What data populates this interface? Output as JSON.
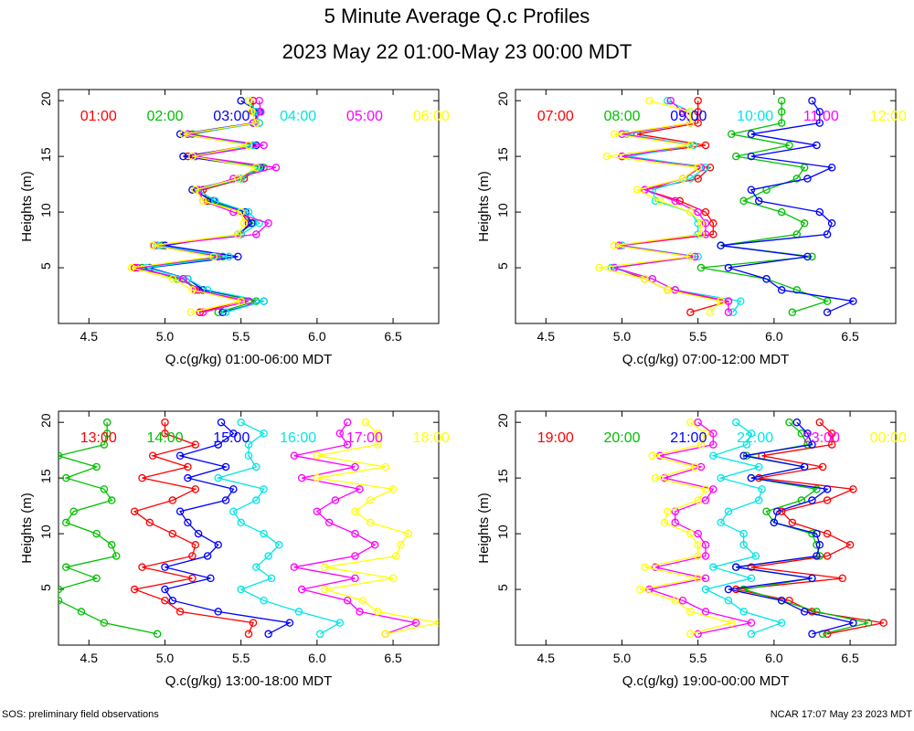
{
  "title": "5 Minute Average Q.c Profiles",
  "subtitle": "2023 May 22 01:00-May 23 00:00 MDT",
  "footer_left": "SOS: preliminary field observations",
  "footer_right": "NCAR 17:07 May 23 2023 MDT",
  "colors": [
    "#ff0000",
    "#00c000",
    "#0000ff",
    "#00e6e6",
    "#ff00ff",
    "#ffff00"
  ],
  "chart_data": [
    {
      "type": "line",
      "xlabel": "Q.c(g/kg) 01:00-06:00 MDT",
      "ylabel": "Heights (m)",
      "xlim": [
        4.3,
        6.8
      ],
      "ylim": [
        0,
        21
      ],
      "xticks": [
        "4.5",
        "5.0",
        "5.5",
        "6.0",
        "6.5"
      ],
      "yticks": [
        "5",
        "10",
        "15",
        "20"
      ],
      "heights": [
        1,
        2,
        3,
        4,
        5,
        6,
        7,
        8,
        9,
        10,
        11,
        12,
        13,
        14,
        15,
        16,
        17,
        18,
        19,
        20
      ],
      "series": [
        {
          "name": "01:00",
          "values": [
            5.23,
            5.5,
            5.22,
            5.12,
            4.8,
            5.35,
            4.95,
            5.5,
            5.55,
            5.5,
            5.28,
            5.25,
            5.52,
            5.62,
            5.15,
            5.55,
            5.15,
            5.62,
            5.58,
            5.58
          ]
        },
        {
          "name": "02:00",
          "values": [
            5.35,
            5.6,
            5.25,
            5.08,
            4.85,
            5.38,
            4.98,
            5.48,
            5.58,
            5.5,
            5.3,
            5.2,
            5.5,
            5.65,
            5.2,
            5.58,
            5.18,
            5.6,
            5.6,
            5.55
          ]
        },
        {
          "name": "03:00",
          "values": [
            5.38,
            5.65,
            5.25,
            5.15,
            4.9,
            5.48,
            5.0,
            5.48,
            5.57,
            5.53,
            5.32,
            5.18,
            5.48,
            5.63,
            5.12,
            5.6,
            5.1,
            5.58,
            5.62,
            5.5
          ]
        },
        {
          "name": "04:00",
          "values": [
            5.4,
            5.65,
            5.28,
            5.15,
            4.88,
            5.42,
            4.95,
            5.5,
            5.62,
            5.55,
            5.33,
            5.22,
            5.5,
            5.62,
            5.18,
            5.58,
            5.15,
            5.62,
            5.6,
            5.55
          ]
        },
        {
          "name": "05:00",
          "values": [
            5.25,
            5.55,
            5.2,
            5.12,
            4.82,
            5.35,
            4.93,
            5.6,
            5.68,
            5.45,
            5.25,
            5.22,
            5.45,
            5.73,
            5.2,
            5.65,
            5.15,
            5.58,
            5.63,
            5.62
          ]
        },
        {
          "name": "06:00",
          "values": [
            5.17,
            5.5,
            5.18,
            5.05,
            4.78,
            5.32,
            4.92,
            5.48,
            5.52,
            5.5,
            5.25,
            5.2,
            5.48,
            5.6,
            5.18,
            5.55,
            5.12,
            5.6,
            5.57,
            5.55
          ]
        }
      ]
    },
    {
      "type": "line",
      "xlabel": "Q.c(g/kg) 07:00-12:00 MDT",
      "ylabel": "Heights (m)",
      "xlim": [
        4.3,
        6.8
      ],
      "ylim": [
        0,
        21
      ],
      "xticks": [
        "4.5",
        "5.0",
        "5.5",
        "6.0",
        "6.5"
      ],
      "yticks": [
        "5",
        "10",
        "15",
        "20"
      ],
      "heights": [
        1,
        2,
        3,
        4,
        5,
        6,
        7,
        8,
        9,
        10,
        11,
        12,
        13,
        14,
        15,
        16,
        17,
        18,
        19,
        20
      ],
      "series": [
        {
          "name": "07:00",
          "values": [
            5.45,
            5.7,
            5.3,
            5.15,
            4.95,
            5.45,
            5.0,
            5.6,
            5.6,
            5.55,
            5.38,
            5.15,
            5.5,
            5.58,
            5.0,
            5.55,
            5.1,
            5.5,
            5.5,
            5.5
          ]
        },
        {
          "name": "08:00",
          "values": [
            6.12,
            6.35,
            6.15,
            5.95,
            5.52,
            6.25,
            5.65,
            6.15,
            6.2,
            6.05,
            5.8,
            5.95,
            6.15,
            6.2,
            5.75,
            6.1,
            5.72,
            6.05,
            6.05,
            6.05
          ]
        },
        {
          "name": "09:00",
          "values": [
            6.35,
            6.52,
            6.05,
            5.95,
            5.7,
            6.22,
            5.65,
            6.35,
            6.38,
            6.3,
            5.9,
            5.85,
            6.22,
            6.38,
            5.85,
            6.28,
            5.85,
            6.3,
            6.3,
            6.25
          ]
        },
        {
          "name": "10:00",
          "values": [
            5.73,
            5.78,
            5.35,
            5.2,
            4.93,
            5.5,
            5.0,
            5.5,
            5.5,
            5.45,
            5.22,
            5.2,
            5.45,
            5.55,
            5.05,
            5.47,
            5.03,
            5.45,
            5.45,
            5.3
          ]
        },
        {
          "name": "11:00",
          "values": [
            5.7,
            5.7,
            5.35,
            5.2,
            4.95,
            5.48,
            4.98,
            5.55,
            5.55,
            5.5,
            5.35,
            5.15,
            5.4,
            5.52,
            5.0,
            5.45,
            5.0,
            5.45,
            5.4,
            5.32
          ]
        },
        {
          "name": "12:00",
          "values": [
            5.58,
            5.65,
            5.3,
            5.15,
            4.85,
            5.45,
            4.95,
            5.52,
            5.52,
            5.45,
            5.25,
            5.1,
            5.4,
            5.5,
            4.9,
            5.45,
            4.95,
            5.45,
            5.45,
            5.18
          ]
        }
      ]
    },
    {
      "type": "line",
      "xlabel": "Q.c(g/kg) 13:00-18:00 MDT",
      "ylabel": "Heights (m)",
      "xlim": [
        4.3,
        6.8
      ],
      "ylim": [
        0,
        21
      ],
      "xticks": [
        "4.5",
        "5.0",
        "5.5",
        "6.0",
        "6.5"
      ],
      "yticks": [
        "5",
        "10",
        "15",
        "20"
      ],
      "heights": [
        1,
        2,
        3,
        4,
        5,
        6,
        7,
        8,
        9,
        10,
        11,
        12,
        13,
        14,
        15,
        16,
        17,
        18,
        19,
        20
      ],
      "series": [
        {
          "name": "13:00",
          "values": [
            5.55,
            5.58,
            5.1,
            5.0,
            4.8,
            5.18,
            4.85,
            5.18,
            5.2,
            5.05,
            4.9,
            4.8,
            5.05,
            5.2,
            4.85,
            5.15,
            4.92,
            5.2,
            5.0,
            5.0
          ]
        },
        {
          "name": "14:00",
          "values": [
            4.95,
            4.6,
            4.45,
            4.3,
            4.3,
            4.55,
            4.35,
            4.68,
            4.65,
            4.55,
            4.35,
            4.4,
            4.65,
            4.6,
            4.35,
            4.55,
            4.3,
            4.6,
            4.62,
            4.62
          ]
        },
        {
          "name": "15:00",
          "values": [
            5.68,
            5.82,
            5.35,
            5.05,
            5.0,
            5.3,
            5.0,
            5.28,
            5.35,
            5.22,
            5.15,
            5.1,
            5.4,
            5.45,
            5.15,
            5.4,
            5.1,
            5.35,
            5.45,
            5.37
          ]
        },
        {
          "name": "16:00",
          "values": [
            6.02,
            6.15,
            5.88,
            5.65,
            5.5,
            5.7,
            5.6,
            5.68,
            5.75,
            5.65,
            5.5,
            5.45,
            5.6,
            5.65,
            5.35,
            5.6,
            5.55,
            5.55,
            5.65,
            5.5
          ]
        },
        {
          "name": "17:00",
          "values": [
            6.45,
            6.65,
            6.28,
            6.2,
            5.9,
            6.25,
            5.85,
            6.25,
            6.38,
            6.25,
            6.08,
            6.0,
            6.12,
            6.28,
            5.9,
            6.25,
            5.85,
            6.2,
            6.15,
            6.2
          ]
        },
        {
          "name": "18:00",
          "values": [
            6.45,
            6.8,
            6.4,
            6.3,
            6.05,
            6.5,
            6.05,
            6.52,
            6.55,
            6.6,
            6.35,
            6.25,
            6.35,
            6.5,
            6.0,
            6.45,
            6.0,
            6.4,
            6.4,
            6.32
          ]
        }
      ]
    },
    {
      "type": "line",
      "xlabel": "Q.c(g/kg) 19:00-00:00 MDT",
      "ylabel": "Heights (m)",
      "xlim": [
        4.3,
        6.8
      ],
      "ylim": [
        0,
        21
      ],
      "xticks": [
        "4.5",
        "5.0",
        "5.5",
        "6.0",
        "6.5"
      ],
      "yticks": [
        "5",
        "10",
        "15",
        "20"
      ],
      "heights": [
        1,
        2,
        3,
        4,
        5,
        6,
        7,
        8,
        9,
        10,
        11,
        12,
        13,
        14,
        15,
        16,
        17,
        18,
        19,
        20
      ],
      "series": [
        {
          "name": "19:00",
          "values": [
            6.35,
            6.72,
            6.25,
            6.1,
            5.75,
            6.45,
            5.85,
            6.35,
            6.5,
            6.35,
            6.12,
            6.05,
            6.35,
            6.52,
            5.9,
            6.32,
            5.92,
            6.38,
            6.38,
            6.3
          ]
        },
        {
          "name": "20:00",
          "values": [
            6.32,
            6.62,
            6.28,
            6.05,
            5.8,
            6.25,
            5.75,
            6.3,
            6.28,
            6.25,
            6.0,
            5.95,
            6.18,
            6.28,
            5.85,
            6.2,
            5.82,
            6.22,
            6.18,
            6.1
          ]
        },
        {
          "name": "21:00",
          "values": [
            6.25,
            6.52,
            6.2,
            6.05,
            5.7,
            6.25,
            5.75,
            6.28,
            6.3,
            6.28,
            6.0,
            6.02,
            6.25,
            6.35,
            5.85,
            6.2,
            5.8,
            6.25,
            6.22,
            6.15
          ]
        },
        {
          "name": "22:00",
          "values": [
            5.85,
            6.05,
            5.8,
            5.7,
            5.55,
            5.85,
            5.6,
            5.88,
            5.8,
            5.8,
            5.65,
            5.7,
            5.9,
            5.92,
            5.65,
            5.9,
            5.6,
            5.82,
            5.85,
            5.75
          ]
        },
        {
          "name": "23:00",
          "values": [
            5.5,
            5.85,
            5.55,
            5.4,
            5.18,
            5.55,
            5.22,
            5.55,
            5.55,
            5.5,
            5.35,
            5.35,
            5.55,
            5.6,
            5.28,
            5.52,
            5.25,
            5.6,
            5.6,
            5.5
          ]
        },
        {
          "name": "00:00",
          "values": [
            5.45,
            5.72,
            5.45,
            5.35,
            5.12,
            5.5,
            5.15,
            5.5,
            5.5,
            5.45,
            5.28,
            5.3,
            5.5,
            5.55,
            5.22,
            5.48,
            5.2,
            5.52,
            5.55,
            5.45
          ]
        }
      ]
    }
  ]
}
